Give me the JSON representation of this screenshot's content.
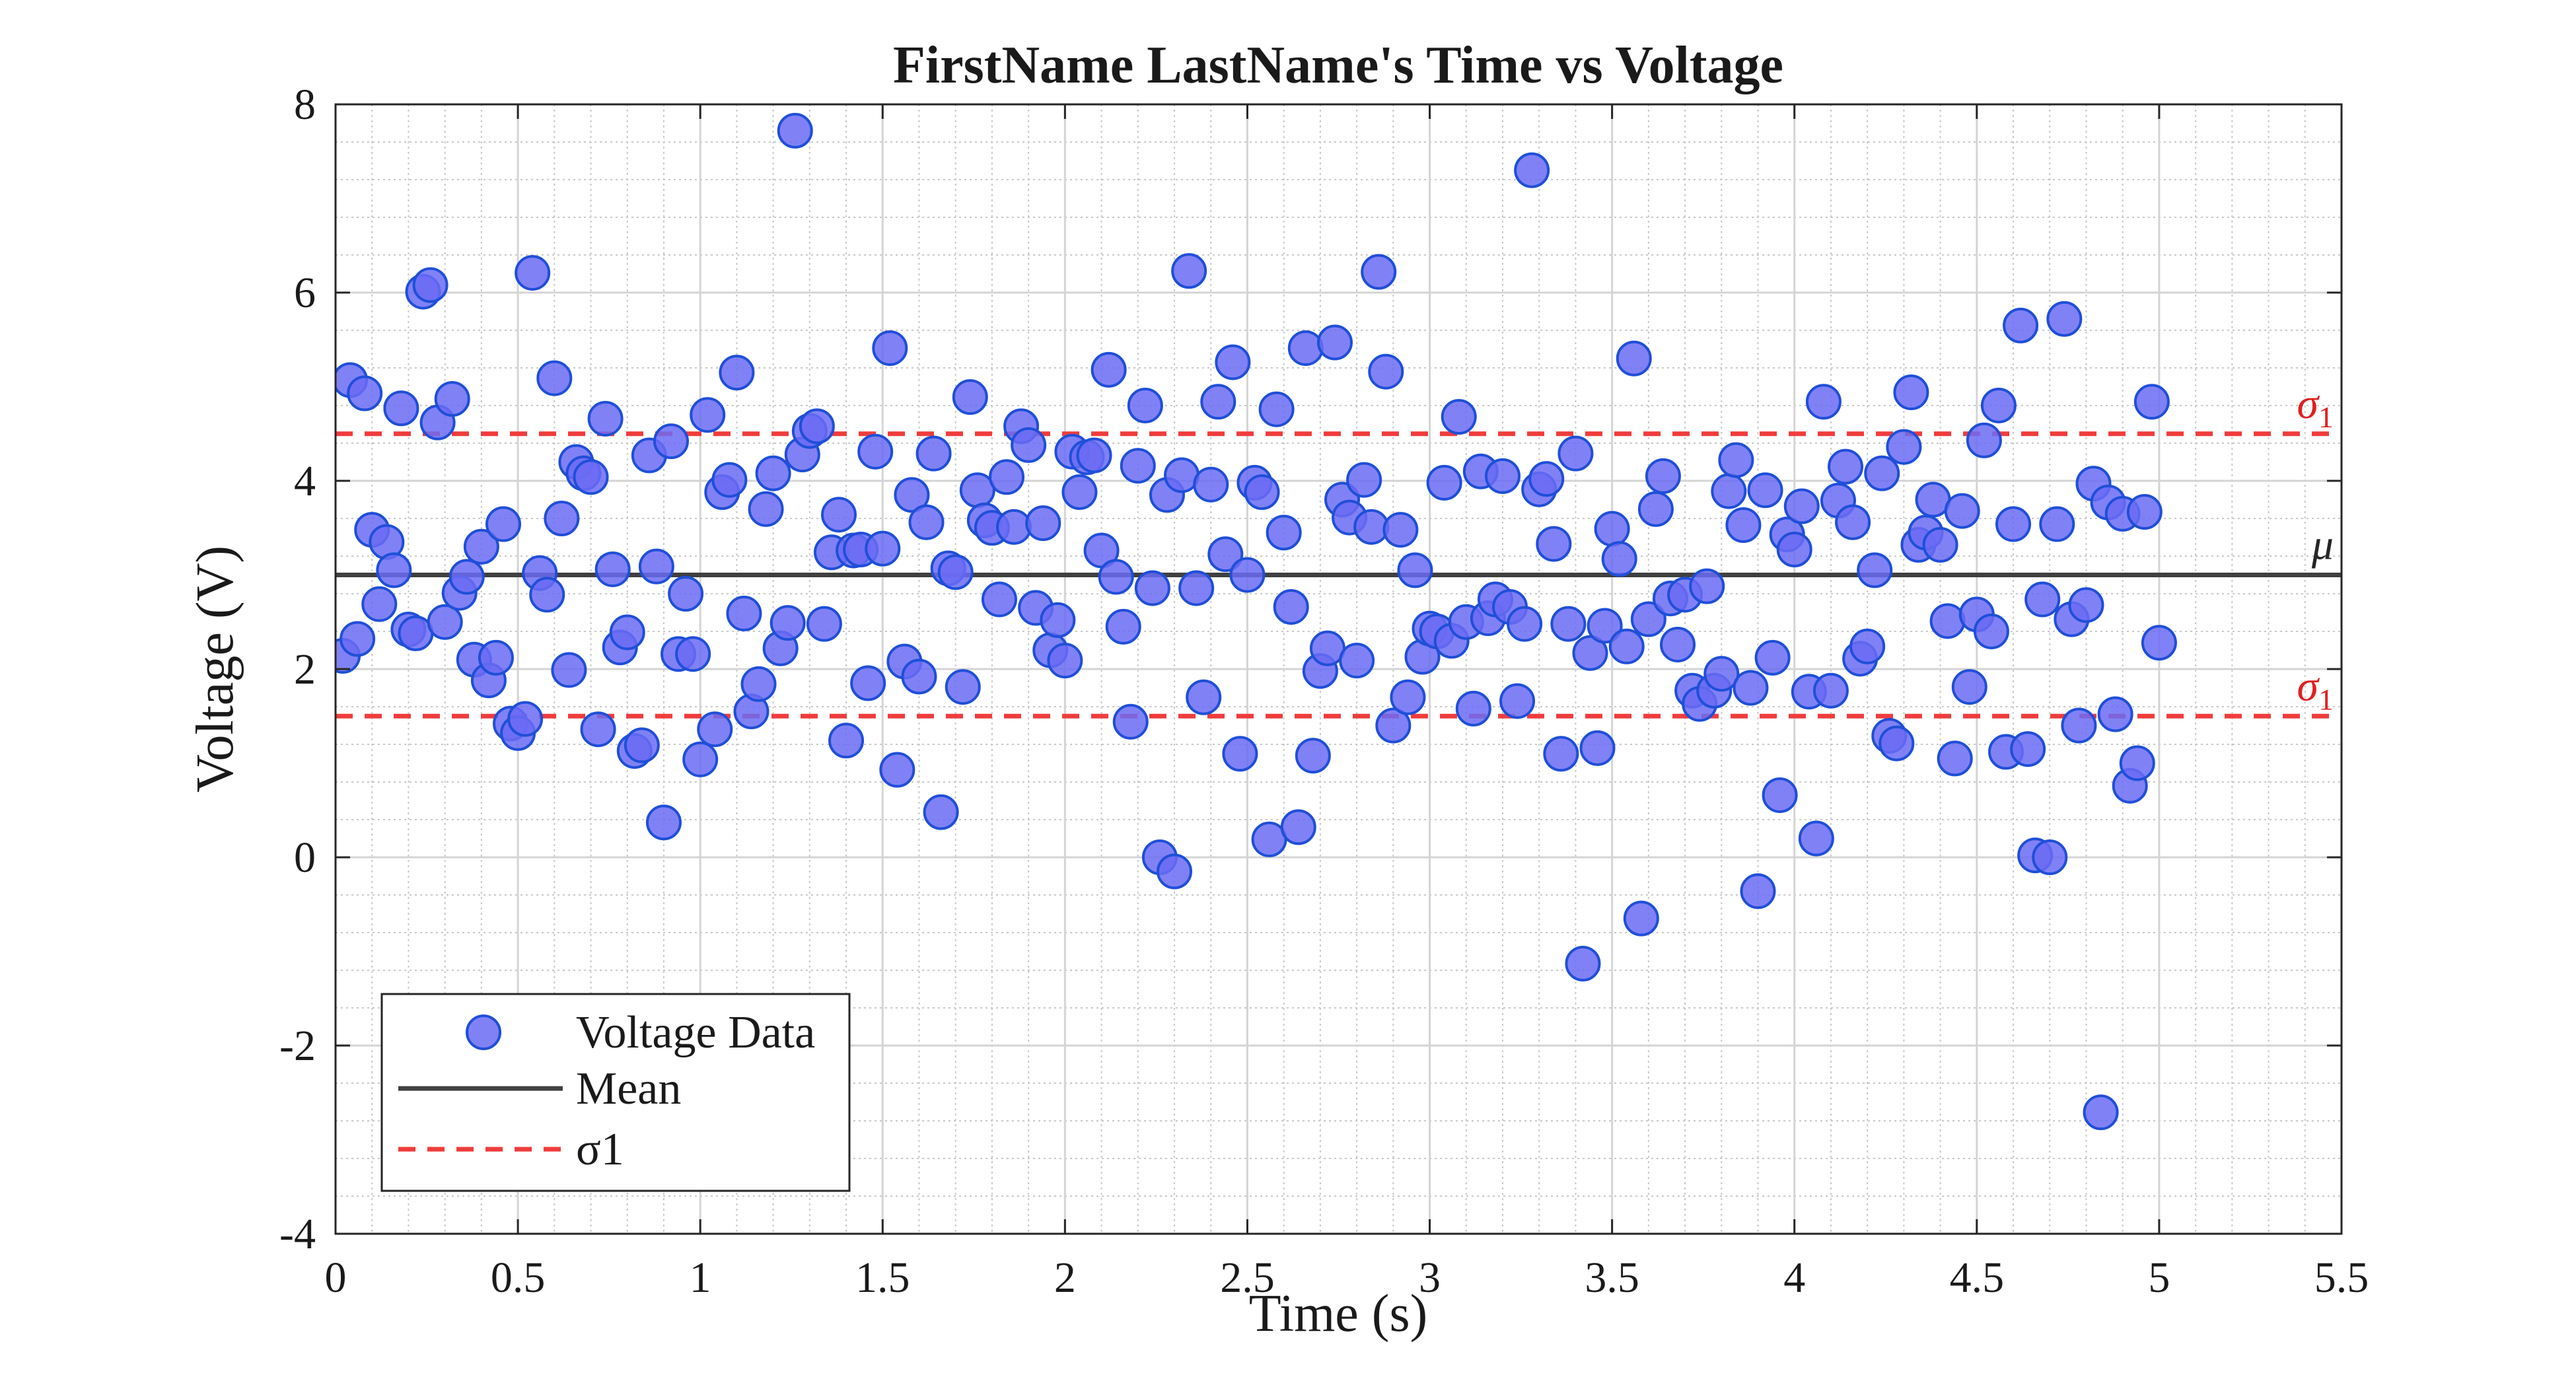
{
  "chart_data": {
    "type": "scatter",
    "title": "FirstName LastName's Time vs Voltage",
    "xlabel": "Time (s)",
    "ylabel": "Voltage (V)",
    "xlim": [
      0,
      5.5
    ],
    "ylim": [
      -4,
      8
    ],
    "x_ticks": [
      "0",
      "0.5",
      "1",
      "1.5",
      "2",
      "2.5",
      "3",
      "3.5",
      "4",
      "4.5",
      "5",
      "5.5"
    ],
    "y_ticks": [
      "-4",
      "-2",
      "0",
      "2",
      "4",
      "6",
      "8"
    ],
    "grid": "major and minor",
    "legend_position": "bottom-left",
    "series": [
      {
        "name": "Voltage Data",
        "kind": "scatter",
        "color": "#6b6bf5",
        "edge_color": "#1f4fd8",
        "points": [
          [
            0.02,
            2.14
          ],
          [
            0.04,
            5.07
          ],
          [
            0.06,
            2.32
          ],
          [
            0.08,
            4.93
          ],
          [
            0.1,
            3.48
          ],
          [
            0.12,
            2.69
          ],
          [
            0.14,
            3.35
          ],
          [
            0.16,
            3.05
          ],
          [
            0.18,
            4.77
          ],
          [
            0.2,
            2.42
          ],
          [
            0.22,
            2.38
          ],
          [
            0.24,
            6.01
          ],
          [
            0.26,
            6.08
          ],
          [
            0.28,
            4.62
          ],
          [
            0.3,
            2.5
          ],
          [
            0.32,
            4.87
          ],
          [
            0.34,
            2.81
          ],
          [
            0.36,
            2.98
          ],
          [
            0.38,
            2.1
          ],
          [
            0.4,
            3.3
          ],
          [
            0.42,
            1.88
          ],
          [
            0.44,
            2.12
          ],
          [
            0.46,
            3.54
          ],
          [
            0.48,
            1.42
          ],
          [
            0.5,
            1.32
          ],
          [
            0.52,
            1.47
          ],
          [
            0.54,
            6.21
          ],
          [
            0.56,
            3.02
          ],
          [
            0.58,
            2.79
          ],
          [
            0.6,
            5.09
          ],
          [
            0.62,
            3.6
          ],
          [
            0.64,
            1.99
          ],
          [
            0.66,
            4.2
          ],
          [
            0.68,
            4.08
          ],
          [
            0.7,
            4.04
          ],
          [
            0.72,
            1.36
          ],
          [
            0.74,
            4.66
          ],
          [
            0.76,
            3.06
          ],
          [
            0.78,
            2.23
          ],
          [
            0.8,
            2.39
          ],
          [
            0.82,
            1.13
          ],
          [
            0.84,
            1.19
          ],
          [
            0.86,
            4.27
          ],
          [
            0.88,
            3.09
          ],
          [
            0.9,
            0.37
          ],
          [
            0.92,
            4.42
          ],
          [
            0.94,
            2.16
          ],
          [
            0.96,
            2.8
          ],
          [
            0.98,
            2.16
          ],
          [
            1.0,
            1.04
          ],
          [
            1.02,
            4.7
          ],
          [
            1.04,
            1.36
          ],
          [
            1.06,
            3.88
          ],
          [
            1.08,
            4.01
          ],
          [
            1.1,
            5.15
          ],
          [
            1.12,
            2.59
          ],
          [
            1.14,
            1.55
          ],
          [
            1.16,
            1.84
          ],
          [
            1.18,
            3.7
          ],
          [
            1.2,
            4.08
          ],
          [
            1.22,
            2.22
          ],
          [
            1.24,
            2.49
          ],
          [
            1.26,
            7.72
          ],
          [
            1.28,
            4.28
          ],
          [
            1.3,
            4.53
          ],
          [
            1.32,
            4.58
          ],
          [
            1.34,
            2.48
          ],
          [
            1.36,
            3.24
          ],
          [
            1.38,
            3.64
          ],
          [
            1.4,
            1.24
          ],
          [
            1.42,
            3.26
          ],
          [
            1.44,
            3.27
          ],
          [
            1.46,
            1.85
          ],
          [
            1.48,
            4.31
          ],
          [
            1.5,
            3.28
          ],
          [
            1.52,
            5.41
          ],
          [
            1.54,
            0.93
          ],
          [
            1.56,
            2.08
          ],
          [
            1.58,
            3.85
          ],
          [
            1.6,
            1.92
          ],
          [
            1.62,
            3.56
          ],
          [
            1.64,
            4.29
          ],
          [
            1.66,
            0.48
          ],
          [
            1.68,
            3.07
          ],
          [
            1.7,
            3.03
          ],
          [
            1.72,
            1.81
          ],
          [
            1.74,
            4.89
          ],
          [
            1.76,
            3.9
          ],
          [
            1.78,
            3.58
          ],
          [
            1.8,
            3.5
          ],
          [
            1.82,
            2.74
          ],
          [
            1.84,
            4.04
          ],
          [
            1.86,
            3.51
          ],
          [
            1.88,
            4.58
          ],
          [
            1.9,
            4.38
          ],
          [
            1.92,
            2.65
          ],
          [
            1.94,
            3.55
          ],
          [
            1.96,
            2.2
          ],
          [
            1.98,
            2.52
          ],
          [
            2.0,
            2.09
          ],
          [
            2.02,
            4.31
          ],
          [
            2.04,
            3.88
          ],
          [
            2.06,
            4.25
          ],
          [
            2.08,
            4.27
          ],
          [
            2.1,
            3.26
          ],
          [
            2.12,
            5.18
          ],
          [
            2.14,
            2.98
          ],
          [
            2.16,
            2.45
          ],
          [
            2.18,
            1.44
          ],
          [
            2.2,
            4.16
          ],
          [
            2.22,
            4.8
          ],
          [
            2.24,
            2.86
          ],
          [
            2.26,
            0.0
          ],
          [
            2.28,
            3.85
          ],
          [
            2.3,
            -0.15
          ],
          [
            2.32,
            4.06
          ],
          [
            2.34,
            6.23
          ],
          [
            2.36,
            2.86
          ],
          [
            2.38,
            1.7
          ],
          [
            2.4,
            3.96
          ],
          [
            2.42,
            4.84
          ],
          [
            2.44,
            3.22
          ],
          [
            2.46,
            5.26
          ],
          [
            2.48,
            1.1
          ],
          [
            2.5,
            3.0
          ],
          [
            2.52,
            3.98
          ],
          [
            2.54,
            3.88
          ],
          [
            2.56,
            0.19
          ],
          [
            2.58,
            4.76
          ],
          [
            2.6,
            3.45
          ],
          [
            2.62,
            2.66
          ],
          [
            2.64,
            0.32
          ],
          [
            2.66,
            5.41
          ],
          [
            2.68,
            1.08
          ],
          [
            2.7,
            1.98
          ],
          [
            2.72,
            2.22
          ],
          [
            2.74,
            5.47
          ],
          [
            2.76,
            3.8
          ],
          [
            2.78,
            3.61
          ],
          [
            2.8,
            2.09
          ],
          [
            2.82,
            4.01
          ],
          [
            2.84,
            3.51
          ],
          [
            2.86,
            6.22
          ],
          [
            2.88,
            5.16
          ],
          [
            2.9,
            1.4
          ],
          [
            2.92,
            3.48
          ],
          [
            2.94,
            1.7
          ],
          [
            2.96,
            3.05
          ],
          [
            2.98,
            2.13
          ],
          [
            3.0,
            2.43
          ],
          [
            3.02,
            2.4
          ],
          [
            3.04,
            3.98
          ],
          [
            3.06,
            2.3
          ],
          [
            3.08,
            4.68
          ],
          [
            3.1,
            2.5
          ],
          [
            3.12,
            1.58
          ],
          [
            3.14,
            4.1
          ],
          [
            3.16,
            2.54
          ],
          [
            3.18,
            2.74
          ],
          [
            3.2,
            4.05
          ],
          [
            3.22,
            2.66
          ],
          [
            3.24,
            1.66
          ],
          [
            3.26,
            2.48
          ],
          [
            3.28,
            7.3
          ],
          [
            3.3,
            3.91
          ],
          [
            3.32,
            4.02
          ],
          [
            3.34,
            3.33
          ],
          [
            3.36,
            1.1
          ],
          [
            3.38,
            2.48
          ],
          [
            3.4,
            4.29
          ],
          [
            3.42,
            -1.13
          ],
          [
            3.44,
            2.17
          ],
          [
            3.46,
            1.16
          ],
          [
            3.48,
            2.46
          ],
          [
            3.5,
            3.49
          ],
          [
            3.52,
            3.17
          ],
          [
            3.54,
            2.24
          ],
          [
            3.56,
            5.3
          ],
          [
            3.58,
            -0.65
          ],
          [
            3.6,
            2.53
          ],
          [
            3.62,
            3.7
          ],
          [
            3.64,
            4.05
          ],
          [
            3.66,
            2.75
          ],
          [
            3.68,
            2.26
          ],
          [
            3.7,
            2.79
          ],
          [
            3.72,
            1.77
          ],
          [
            3.74,
            1.63
          ],
          [
            3.76,
            2.88
          ],
          [
            3.78,
            1.77
          ],
          [
            3.8,
            1.95
          ],
          [
            3.82,
            3.89
          ],
          [
            3.84,
            4.22
          ],
          [
            3.86,
            3.53
          ],
          [
            3.88,
            1.8
          ],
          [
            3.9,
            -0.36
          ],
          [
            3.92,
            3.9
          ],
          [
            3.94,
            2.12
          ],
          [
            3.96,
            0.66
          ],
          [
            3.98,
            3.43
          ],
          [
            4.0,
            3.27
          ],
          [
            4.02,
            3.73
          ],
          [
            4.04,
            1.76
          ],
          [
            4.06,
            0.2
          ],
          [
            4.08,
            4.84
          ],
          [
            4.1,
            1.77
          ],
          [
            4.12,
            3.79
          ],
          [
            4.14,
            4.15
          ],
          [
            4.16,
            3.56
          ],
          [
            4.18,
            2.11
          ],
          [
            4.2,
            2.24
          ],
          [
            4.22,
            3.05
          ],
          [
            4.24,
            4.08
          ],
          [
            4.26,
            1.29
          ],
          [
            4.28,
            1.21
          ],
          [
            4.3,
            4.36
          ],
          [
            4.32,
            4.94
          ],
          [
            4.34,
            3.32
          ],
          [
            4.36,
            3.45
          ],
          [
            4.38,
            3.8
          ],
          [
            4.4,
            3.32
          ],
          [
            4.42,
            2.51
          ],
          [
            4.44,
            1.05
          ],
          [
            4.46,
            3.68
          ],
          [
            4.48,
            1.81
          ],
          [
            4.5,
            2.58
          ],
          [
            4.52,
            4.43
          ],
          [
            4.54,
            2.4
          ],
          [
            4.56,
            4.8
          ],
          [
            4.58,
            1.12
          ],
          [
            4.6,
            3.54
          ],
          [
            4.62,
            5.65
          ],
          [
            4.64,
            1.15
          ],
          [
            4.66,
            0.02
          ],
          [
            4.68,
            2.74
          ],
          [
            4.7,
            0.0
          ],
          [
            4.72,
            3.54
          ],
          [
            4.74,
            5.72
          ],
          [
            4.76,
            2.53
          ],
          [
            4.78,
            1.4
          ],
          [
            4.8,
            2.68
          ],
          [
            4.82,
            3.97
          ],
          [
            4.84,
            -2.71
          ],
          [
            4.86,
            3.77
          ],
          [
            4.88,
            1.52
          ],
          [
            4.9,
            3.65
          ],
          [
            4.92,
            0.76
          ],
          [
            4.94,
            1.0
          ],
          [
            4.96,
            3.67
          ],
          [
            4.98,
            4.84
          ],
          [
            5.0,
            2.28
          ]
        ]
      },
      {
        "name": "Mean",
        "kind": "hline",
        "y": 3.0,
        "color": "#404040",
        "dashed": false,
        "annotation": "μ"
      },
      {
        "name": "σ1",
        "kind": "hline",
        "y": 4.5,
        "color": "#f03c3c",
        "dashed": true,
        "annotation": "σ1"
      },
      {
        "name": "σ1",
        "kind": "hline",
        "y": 1.5,
        "color": "#f03c3c",
        "dashed": true,
        "annotation": "σ1",
        "in_legend": false
      }
    ]
  }
}
